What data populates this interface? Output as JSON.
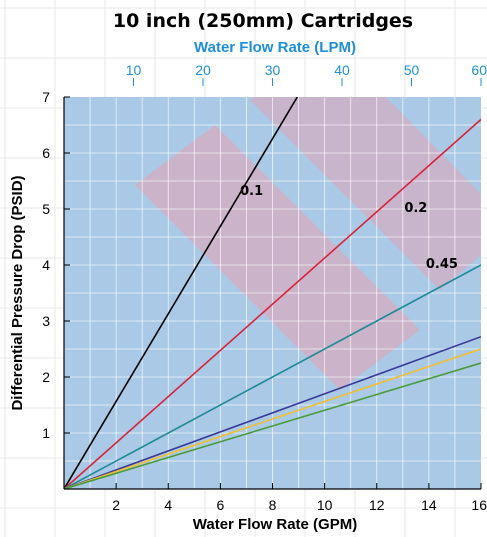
{
  "chart_data": {
    "type": "line",
    "title": "10 inch (250mm) Cartridges",
    "xlabel": "Water Flow Rate (GPM)",
    "ylabel": "Differential Pressure Drop (PSID)",
    "x2label": "Water Flow Rate (LPM)",
    "xlim": [
      0,
      16
    ],
    "ylim": [
      0,
      7
    ],
    "x2lim": [
      0,
      60
    ],
    "xticks": [
      "2",
      "4",
      "6",
      "8",
      "10",
      "12",
      "14",
      "16"
    ],
    "yticks": [
      "1",
      "2",
      "3",
      "4",
      "5",
      "6",
      "7"
    ],
    "x2ticks": [
      "10",
      "20",
      "30",
      "40",
      "50",
      "60"
    ],
    "grid": true,
    "series": [
      {
        "name": "0.1",
        "color": "#000000",
        "x": [
          0,
          8.95
        ],
        "y": [
          0,
          7
        ]
      },
      {
        "name": "0.2",
        "color": "#d8233a",
        "x": [
          0,
          16
        ],
        "y": [
          0,
          6.6
        ]
      },
      {
        "name": "0.45",
        "color": "#1c8a96",
        "x": [
          0,
          16
        ],
        "y": [
          0,
          4.0
        ]
      },
      {
        "name": "",
        "color": "#3a3a9a",
        "x": [
          0,
          16
        ],
        "y": [
          0,
          2.72
        ]
      },
      {
        "name": "",
        "color": "#f0c030",
        "x": [
          0,
          16
        ],
        "y": [
          0,
          2.5
        ]
      },
      {
        "name": "",
        "color": "#4a9a3a",
        "x": [
          0,
          16
        ],
        "y": [
          0,
          2.25
        ]
      }
    ]
  },
  "colors": {
    "plot_background": "#a9c9e6",
    "gridline": "#ffffff",
    "watermark": "#e8a0b0",
    "top_axis": "#1e8fd6"
  },
  "watermark_icon": "brand-logo-watermark"
}
